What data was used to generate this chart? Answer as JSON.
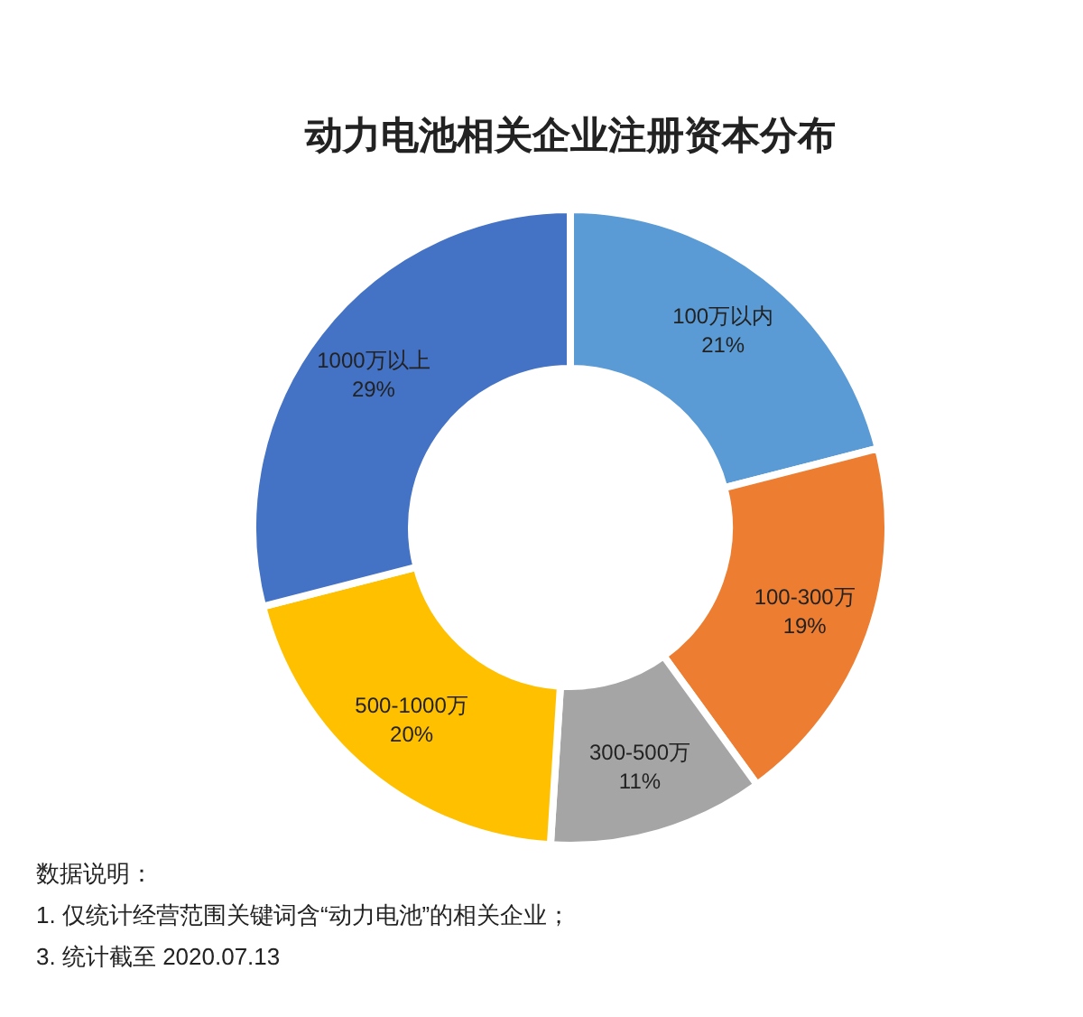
{
  "chart_data": {
    "type": "donut",
    "title": "动力电池相关企业注册资本分布",
    "categories": [
      "100万以内",
      "100-300万",
      "300-500万",
      "500-1000万",
      "1000万以上"
    ],
    "values": [
      21,
      19,
      11,
      20,
      29
    ],
    "colors": [
      "#5b9bd5",
      "#ed7d31",
      "#a5a5a5",
      "#ffc000",
      "#4472c4"
    ],
    "value_labels": [
      "21%",
      "19%",
      "11%",
      "20%",
      "29%"
    ],
    "annotations": [
      "数据说明：",
      "1. 仅统计经营范围关键词含“动力电池”的相关企业；",
      "3. 统计截至 2020.07.13"
    ]
  }
}
